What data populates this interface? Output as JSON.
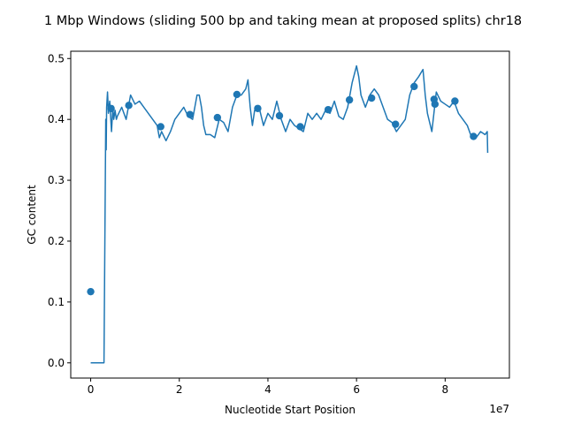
{
  "chart_data": {
    "type": "line",
    "title": "1 Mbp Windows (sliding 500 bp and taking mean at proposed splits) chr18",
    "xlabel": "Nucleotide Start Position",
    "ylabel": "GC content",
    "x_offset_text": "1e7",
    "xlim": [
      -0.45,
      9.45
    ],
    "ylim": [
      -0.025,
      0.512
    ],
    "x_ticks": [
      0,
      2,
      4,
      6,
      8
    ],
    "x_tick_labels": [
      "0",
      "2",
      "4",
      "6",
      "8"
    ],
    "y_ticks": [
      0.0,
      0.1,
      0.2,
      0.3,
      0.4,
      0.5
    ],
    "y_tick_labels": [
      "0.0",
      "0.1",
      "0.2",
      "0.3",
      "0.4",
      "0.5"
    ],
    "line_color": "#1f77b4",
    "marker_color": "#1f77b4",
    "series": [
      {
        "type": "line",
        "x": [
          0,
          0.2,
          0.22,
          0.3,
          0.33,
          0.34,
          0.35,
          0.36,
          0.38,
          0.4,
          0.43,
          0.47,
          0.5,
          0.52,
          0.55,
          0.58,
          0.6,
          0.7,
          0.8,
          0.9,
          1.0,
          1.1,
          1.2,
          1.3,
          1.4,
          1.5,
          1.55,
          1.6,
          1.7,
          1.8,
          1.9,
          2.0,
          2.1,
          2.2,
          2.3,
          2.4,
          2.45,
          2.5,
          2.55,
          2.6,
          2.7,
          2.8,
          2.9,
          3.0,
          3.1,
          3.2,
          3.3,
          3.4,
          3.5,
          3.55,
          3.6,
          3.65,
          3.7,
          3.8,
          3.9,
          4.0,
          4.1,
          4.2,
          4.3,
          4.4,
          4.5,
          4.6,
          4.7,
          4.8,
          4.9,
          5.0,
          5.1,
          5.2,
          5.3,
          5.4,
          5.5,
          5.6,
          5.7,
          5.8,
          5.9,
          6.0,
          6.05,
          6.1,
          6.2,
          6.3,
          6.4,
          6.5,
          6.6,
          6.7,
          6.8,
          6.9,
          7.0,
          7.1,
          7.2,
          7.3,
          7.4,
          7.5,
          7.55,
          7.6,
          7.7,
          7.8,
          7.9,
          8.0,
          8.1,
          8.2,
          8.3,
          8.4,
          8.5,
          8.6,
          8.7,
          8.8,
          8.9,
          8.95,
          8.96
        ],
        "y": [
          0.0,
          0.0,
          0.0,
          0.0,
          0.3,
          0.4,
          0.35,
          0.42,
          0.445,
          0.41,
          0.43,
          0.38,
          0.42,
          0.4,
          0.415,
          0.4,
          0.405,
          0.42,
          0.4,
          0.44,
          0.425,
          0.43,
          0.42,
          0.41,
          0.4,
          0.39,
          0.37,
          0.38,
          0.365,
          0.38,
          0.4,
          0.41,
          0.42,
          0.405,
          0.4,
          0.44,
          0.44,
          0.42,
          0.39,
          0.375,
          0.375,
          0.37,
          0.4,
          0.395,
          0.38,
          0.42,
          0.44,
          0.44,
          0.45,
          0.465,
          0.42,
          0.39,
          0.415,
          0.42,
          0.39,
          0.41,
          0.4,
          0.43,
          0.4,
          0.38,
          0.4,
          0.39,
          0.385,
          0.38,
          0.41,
          0.4,
          0.41,
          0.4,
          0.415,
          0.41,
          0.43,
          0.405,
          0.4,
          0.42,
          0.46,
          0.488,
          0.47,
          0.44,
          0.42,
          0.44,
          0.45,
          0.44,
          0.42,
          0.4,
          0.395,
          0.38,
          0.39,
          0.4,
          0.44,
          0.46,
          0.47,
          0.482,
          0.44,
          0.41,
          0.38,
          0.445,
          0.43,
          0.425,
          0.42,
          0.43,
          0.41,
          0.4,
          0.39,
          0.37,
          0.37,
          0.38,
          0.375,
          0.38,
          0.345
        ]
      },
      {
        "type": "scatter",
        "x": [
          0.0,
          0.46,
          0.86,
          1.58,
          2.24,
          2.86,
          3.3,
          3.77,
          4.26,
          4.73,
          5.36,
          5.84,
          6.34,
          6.88,
          7.3,
          7.75,
          7.77,
          8.22,
          8.64
        ],
        "y": [
          0.117,
          0.418,
          0.423,
          0.388,
          0.408,
          0.403,
          0.441,
          0.418,
          0.406,
          0.388,
          0.416,
          0.432,
          0.435,
          0.392,
          0.454,
          0.433,
          0.425,
          0.43,
          0.372
        ]
      }
    ]
  }
}
